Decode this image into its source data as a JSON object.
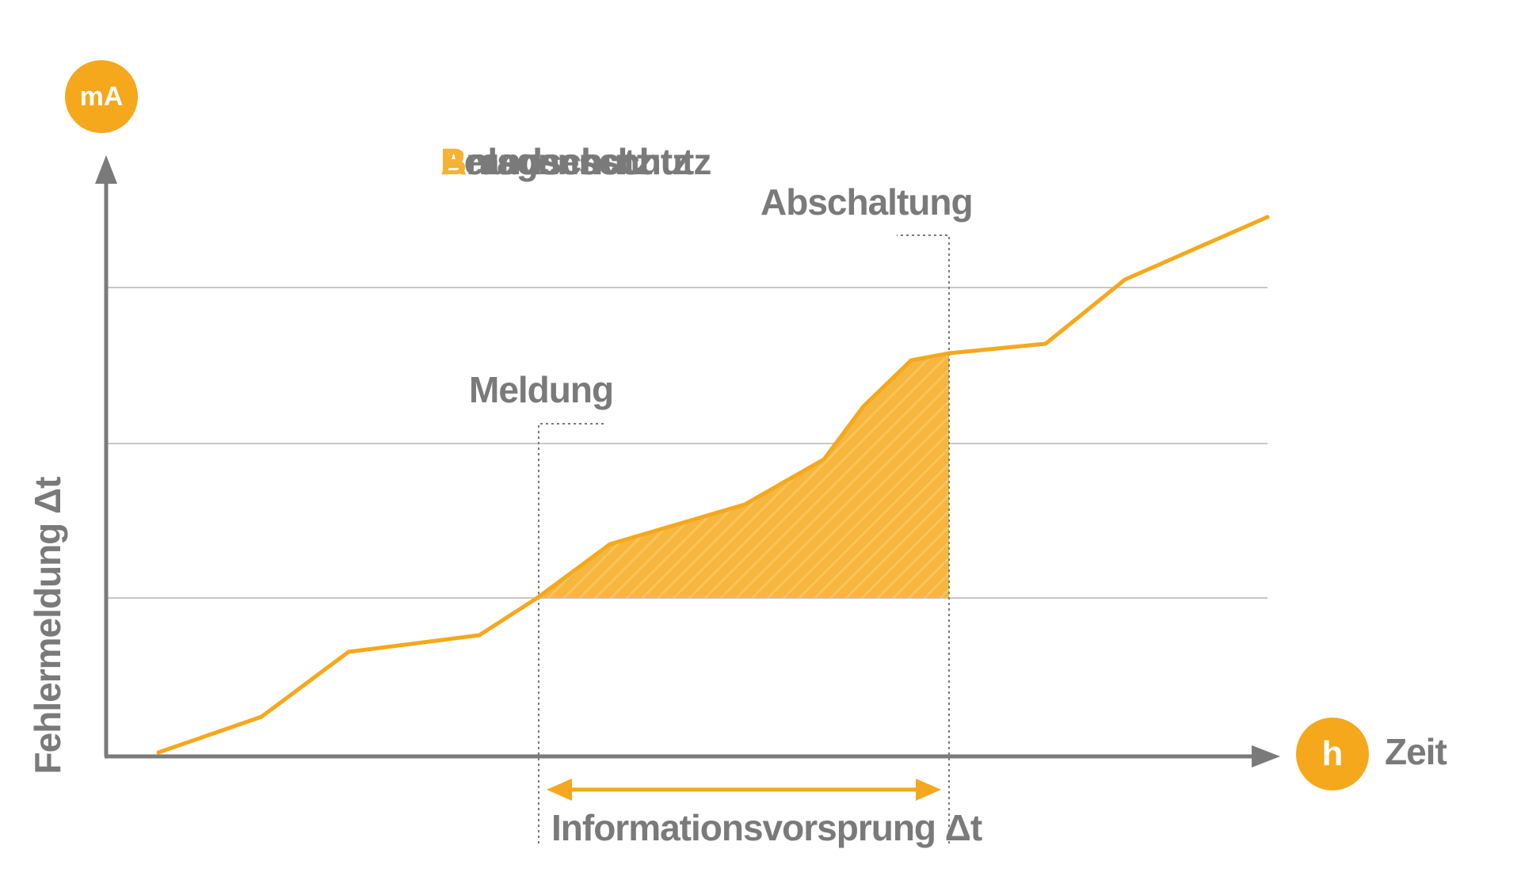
{
  "colors": {
    "accent": "#f5a81c",
    "fill": "#f7b73f",
    "text": "#7a7a7a",
    "axis": "#7a7a7a",
    "grid": "#c8c8c8"
  },
  "badges": {
    "y_unit": "mA",
    "x_unit": "h"
  },
  "axes": {
    "y_label": "Fehlermeldung Δt",
    "x_label": "Zeit"
  },
  "protection": {
    "items": [
      {
        "initial": "P",
        "rest": "ersonenschutz"
      },
      {
        "initial": "A",
        "rest": "nlagenschutz"
      },
      {
        "initial": "B",
        "rest": "randschutz"
      }
    ]
  },
  "markers": {
    "report": "Meldung",
    "shutdown": "Abschaltung"
  },
  "interval": {
    "label": "Informationsvorsprung Δt"
  }
}
